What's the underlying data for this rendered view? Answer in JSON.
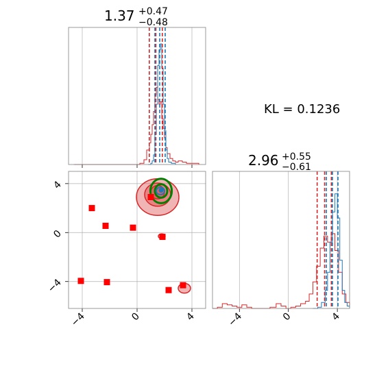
{
  "kl_text": "KL = 0.1236",
  "colors": {
    "red": "#d62728",
    "blue": "#1f77b4",
    "green": "#008000",
    "marker": "#ff0000",
    "grid": "#b0b0b0",
    "frame": "#808080"
  },
  "chart_data": [
    {
      "panel": "top-marginal",
      "type": "line",
      "title": {
        "value": "1.37",
        "sup": "+0.47",
        "sub": "−0.48"
      },
      "xlim": [
        -5,
        5
      ],
      "xticks": [
        -4,
        0,
        4
      ],
      "grid": true,
      "vlines_red": [
        0.89,
        1.37,
        1.84
      ],
      "vlines_blue": [
        1.3,
        1.65,
        2.05
      ],
      "series": [
        {
          "color": "red",
          "style": "step",
          "x": [
            -4.6,
            -4.0,
            -3.0,
            -2.0,
            -1.0,
            -0.2,
            0.2,
            0.5,
            0.7,
            0.9,
            1.0,
            1.1,
            1.2,
            1.3,
            1.4,
            1.5,
            1.6,
            1.7,
            1.8,
            1.9,
            2.0,
            2.1,
            2.2,
            2.4,
            2.6,
            2.8,
            3.0,
            3.3,
            3.6,
            4.0,
            4.5
          ],
          "y": [
            0,
            0,
            0,
            0,
            0,
            0,
            0.01,
            0.04,
            0.12,
            0.18,
            0.25,
            0.33,
            0.44,
            0.58,
            0.64,
            0.54,
            0.5,
            0.52,
            0.38,
            0.3,
            0.22,
            0.14,
            0.09,
            0.05,
            0.03,
            0.02,
            0.03,
            0.02,
            0.01,
            0.01,
            0
          ]
        },
        {
          "color": "blue",
          "style": "step",
          "x": [
            0.8,
            1.0,
            1.1,
            1.2,
            1.3,
            1.4,
            1.5,
            1.6,
            1.7,
            1.8,
            1.9,
            2.0,
            2.1,
            2.2,
            2.3,
            2.5,
            2.8
          ],
          "y": [
            0,
            0.01,
            0.03,
            0.08,
            0.25,
            0.5,
            0.82,
            0.95,
            1.0,
            0.8,
            0.5,
            0.28,
            0.12,
            0.05,
            0.02,
            0.01,
            0
          ]
        }
      ]
    },
    {
      "panel": "joint",
      "type": "scatter",
      "xlim": [
        -5,
        5
      ],
      "ylim": [
        -6.2,
        5
      ],
      "xticks": [
        -4,
        0,
        4
      ],
      "yticks": [
        -4,
        0,
        4
      ],
      "grid": true,
      "square_markers": [
        [
          -4.1,
          -3.95
        ],
        [
          -3.3,
          2.0
        ],
        [
          -2.3,
          0.55
        ],
        [
          -2.2,
          -4.05
        ],
        [
          -0.3,
          0.4
        ],
        [
          1.0,
          2.9
        ],
        [
          1.85,
          -0.35
        ],
        [
          2.3,
          -4.7
        ],
        [
          3.35,
          -4.3
        ]
      ],
      "contours": [
        {
          "type": "filled",
          "color": "red",
          "cx": 1.5,
          "cy": 2.9,
          "rx": 1.55,
          "ry": 1.5
        },
        {
          "type": "filled",
          "color": "red",
          "cx": 1.5,
          "cy": 3.1,
          "rx": 0.95,
          "ry": 0.95
        },
        {
          "type": "filled",
          "color": "red",
          "cx": 1.5,
          "cy": 3.3,
          "rx": 0.5,
          "ry": 0.55
        },
        {
          "type": "filled",
          "color": "red",
          "cx": 1.8,
          "cy": -0.3,
          "rx": 0.25,
          "ry": 0.2
        },
        {
          "type": "filled",
          "color": "red",
          "cx": 3.45,
          "cy": -4.55,
          "rx": 0.45,
          "ry": 0.4
        },
        {
          "type": "line",
          "color": "green",
          "cx": 1.75,
          "cy": 3.4,
          "rx": 0.78,
          "ry": 1.0
        },
        {
          "type": "line",
          "color": "green",
          "cx": 1.75,
          "cy": 3.4,
          "rx": 0.45,
          "ry": 0.55
        },
        {
          "type": "line",
          "color": "blue",
          "cx": 1.7,
          "cy": 3.4,
          "rx": 0.3,
          "ry": 0.3
        }
      ],
      "blue_point": [
        1.75,
        3.45
      ]
    },
    {
      "panel": "right-marginal",
      "type": "line",
      "title": {
        "value": "2.96",
        "sup": "+0.55",
        "sub": "−0.61"
      },
      "xlim": [
        -6.2,
        5
      ],
      "xticks": [
        -4,
        0,
        4
      ],
      "grid": true,
      "vlines_red": [
        2.35,
        2.96,
        3.51
      ],
      "vlines_blue": [
        3.1,
        3.6,
        4.05
      ],
      "series": [
        {
          "color": "red",
          "style": "step",
          "x": [
            -6.2,
            -5.8,
            -5.4,
            -5.0,
            -4.6,
            -4.2,
            -3.8,
            -3.4,
            -3.0,
            -2.0,
            -1.5,
            -1.0,
            -0.6,
            -0.2,
            0.2,
            0.6,
            1.0,
            1.4,
            1.7,
            2.0,
            2.3,
            2.6,
            2.9,
            3.2,
            3.5,
            3.8,
            4.1,
            4.4,
            4.7,
            5.0
          ],
          "y": [
            0,
            0.01,
            0.04,
            0.03,
            0.02,
            0.01,
            0.03,
            0.01,
            0,
            0,
            0.01,
            0.04,
            0.02,
            0.0,
            0.01,
            0.02,
            0.04,
            0.06,
            0.12,
            0.22,
            0.35,
            0.5,
            0.6,
            0.55,
            0.62,
            0.48,
            0.3,
            0.12,
            0.05,
            0.01
          ]
        },
        {
          "color": "blue",
          "style": "step",
          "x": [
            2.0,
            2.4,
            2.7,
            3.0,
            3.2,
            3.4,
            3.6,
            3.8,
            4.0,
            4.2,
            4.4,
            4.6,
            4.8,
            5.0
          ],
          "y": [
            0,
            0.01,
            0.05,
            0.15,
            0.3,
            0.55,
            0.8,
            0.95,
            0.75,
            0.4,
            0.15,
            0.05,
            0.02,
            0
          ]
        }
      ]
    }
  ]
}
